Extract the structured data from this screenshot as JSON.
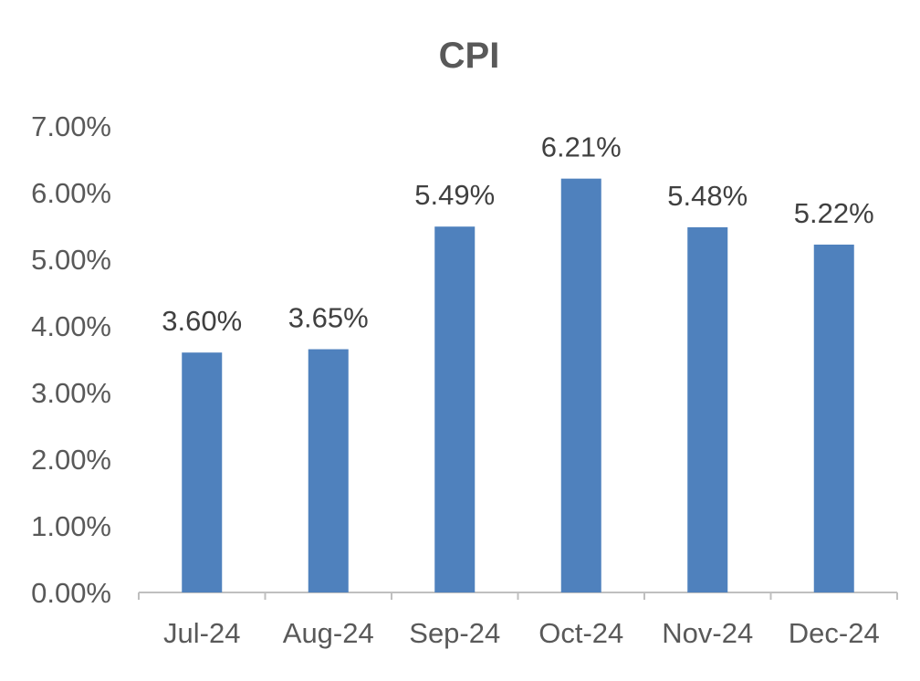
{
  "chart_data": {
    "type": "bar",
    "title": "CPI",
    "categories": [
      "Jul-24",
      "Aug-24",
      "Sep-24",
      "Oct-24",
      "Nov-24",
      "Dec-24"
    ],
    "values": [
      3.6,
      3.65,
      5.49,
      6.21,
      5.48,
      5.22
    ],
    "data_labels": [
      "3.60%",
      "3.65%",
      "5.49%",
      "6.21%",
      "5.48%",
      "5.22%"
    ],
    "y_ticks": [
      0,
      1,
      2,
      3,
      4,
      5,
      6,
      7
    ],
    "y_tick_labels": [
      "0.00%",
      "1.00%",
      "2.00%",
      "3.00%",
      "4.00%",
      "5.00%",
      "6.00%",
      "7.00%"
    ],
    "ylim": [
      0,
      7
    ],
    "xlabel": "",
    "ylabel": "",
    "grid": false,
    "legend": "none",
    "colors": {
      "bar": "#4f81bd",
      "axis": "#bfbfbf",
      "text": "#595959",
      "data_label": "#404040"
    }
  }
}
